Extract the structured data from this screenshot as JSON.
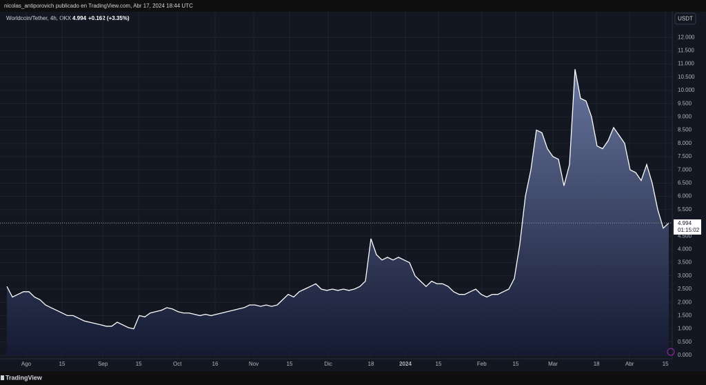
{
  "header": {
    "caption": "nicolas_antiporovich publicado en TradingView.com, Abr 17, 2024 18:44 UTC",
    "brand": "TradingView"
  },
  "chart_data": {
    "type": "area",
    "symbol": "Worldcoin/Tether, 4h, OKX",
    "change": "+0.162 (+3.35%)",
    "countdown": "01:15:02",
    "currency": "USDT",
    "color": "#ffffff",
    "grid": true,
    "values": [
      2.6,
      2.2,
      2.3,
      2.4,
      2.4,
      2.2,
      2.1,
      1.9,
      1.8,
      1.7,
      1.6,
      1.5,
      1.5,
      1.4,
      1.3,
      1.25,
      1.2,
      1.15,
      1.1,
      1.1,
      1.25,
      1.15,
      1.05,
      1.0,
      1.5,
      1.45,
      1.6,
      1.65,
      1.7,
      1.8,
      1.75,
      1.65,
      1.6,
      1.6,
      1.55,
      1.5,
      1.55,
      1.5,
      1.55,
      1.6,
      1.65,
      1.7,
      1.75,
      1.8,
      1.9,
      1.9,
      1.85,
      1.9,
      1.85,
      1.9,
      2.1,
      2.3,
      2.2,
      2.4,
      2.5,
      2.6,
      2.7,
      2.5,
      2.45,
      2.5,
      2.45,
      2.5,
      2.45,
      2.5,
      2.6,
      2.8,
      4.4,
      3.8,
      3.6,
      3.7,
      3.6,
      3.7,
      3.6,
      3.5,
      3.0,
      2.8,
      2.6,
      2.8,
      2.7,
      2.7,
      2.6,
      2.4,
      2.3,
      2.3,
      2.4,
      2.5,
      2.3,
      2.2,
      2.3,
      2.3,
      2.4,
      2.5,
      2.9,
      4.2,
      6.0,
      7.0,
      8.5,
      8.4,
      7.8,
      7.5,
      7.4,
      6.4,
      7.2,
      10.8,
      9.7,
      9.6,
      9.0,
      7.9,
      7.8,
      8.1,
      8.6,
      8.3,
      8.0,
      7.0,
      6.9,
      6.6,
      7.2,
      6.5,
      5.5,
      4.8,
      4.994
    ],
    "xlim": [
      -1.25,
      120.625
    ],
    "xticks": [
      {
        "value": 3.5,
        "label": "Ago"
      },
      {
        "value": 10,
        "label": "15"
      },
      {
        "value": 17.4,
        "label": "Sep"
      },
      {
        "value": 23.9,
        "label": "15"
      },
      {
        "value": 30.9,
        "label": "Oct"
      },
      {
        "value": 37.75,
        "label": "16"
      },
      {
        "value": 44.75,
        "label": "Nov"
      },
      {
        "value": 51.25,
        "label": "15"
      },
      {
        "value": 58.25,
        "label": "Dic"
      },
      {
        "value": 66,
        "label": "18"
      },
      {
        "value": 72.25,
        "label": "2024"
      },
      {
        "value": 78.25,
        "label": "15"
      },
      {
        "value": 86.1,
        "label": "Feb"
      },
      {
        "value": 92.25,
        "label": "15"
      },
      {
        "value": 99,
        "label": "Mar"
      },
      {
        "value": 106.9,
        "label": "18"
      },
      {
        "value": 112.9,
        "label": "Abr"
      },
      {
        "value": 119.4,
        "label": "15"
      }
    ],
    "ylim": [
      0,
      12.5
    ],
    "yticks": [
      {
        "value": 0,
        "label": "0.000"
      },
      {
        "value": 0.5,
        "label": "0.500"
      },
      {
        "value": 1,
        "label": "1.000"
      },
      {
        "value": 1.5,
        "label": "1.500"
      },
      {
        "value": 2,
        "label": "2.000"
      },
      {
        "value": 2.5,
        "label": "2.500"
      },
      {
        "value": 3,
        "label": "3.000"
      },
      {
        "value": 3.5,
        "label": "3.500"
      },
      {
        "value": 4,
        "label": "4.000"
      },
      {
        "value": 4.5,
        "label": "4.500"
      },
      {
        "value": 5,
        "label": "5.000"
      },
      {
        "value": 5.5,
        "label": "5.500"
      },
      {
        "value": 6,
        "label": "6.000"
      },
      {
        "value": 6.5,
        "label": "6.500"
      },
      {
        "value": 7,
        "label": "7.000"
      },
      {
        "value": 7.5,
        "label": "7.500"
      },
      {
        "value": 8,
        "label": "8.000"
      },
      {
        "value": 8.5,
        "label": "8.500"
      },
      {
        "value": 9,
        "label": "9.000"
      },
      {
        "value": 9.5,
        "label": "9.500"
      },
      {
        "value": 10,
        "label": "10.000"
      },
      {
        "value": 10.5,
        "label": "10.500"
      },
      {
        "value": 11,
        "label": "11.000"
      },
      {
        "value": 11.5,
        "label": "11.500"
      },
      {
        "value": 12,
        "label": "12.000"
      }
    ]
  }
}
